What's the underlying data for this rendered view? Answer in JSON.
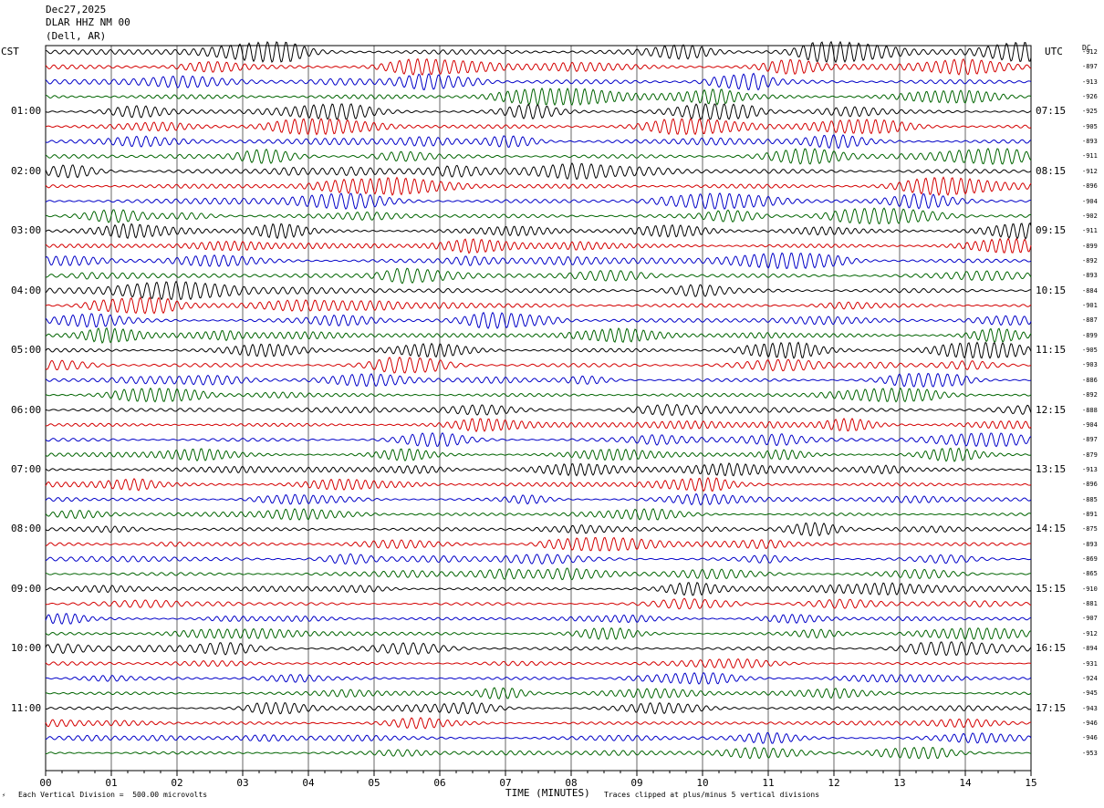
{
  "header": {
    "date": "Dec27,2025",
    "station": "DLAR HHZ NM 00",
    "location": "(Dell, AR)"
  },
  "left_zone": "CST",
  "right_zone": "UTC",
  "dc_label": "DC",
  "footer": {
    "scale": "Each Vertical Division =  500.00 microvolts",
    "xlabel": "TIME (MINUTES)",
    "clip_note": "Traces clipped at plus/minus 5 vertical divisions"
  },
  "chart_data": {
    "type": "line",
    "title": "",
    "xlabel": "TIME (MINUTES)",
    "ylabel": "",
    "xlim": [
      0,
      15
    ],
    "x_ticks": [
      "00",
      "01",
      "02",
      "03",
      "04",
      "05",
      "06",
      "07",
      "08",
      "09",
      "10",
      "11",
      "12",
      "13",
      "14",
      "15"
    ],
    "grid": true,
    "trace_colors": [
      "#000000",
      "#d40000",
      "#0000c8",
      "#006400"
    ],
    "row_count": 48,
    "left_labels": [
      {
        "row": 4,
        "text": "01:00"
      },
      {
        "row": 8,
        "text": "02:00"
      },
      {
        "row": 12,
        "text": "03:00"
      },
      {
        "row": 16,
        "text": "04:00"
      },
      {
        "row": 20,
        "text": "05:00"
      },
      {
        "row": 24,
        "text": "06:00"
      },
      {
        "row": 28,
        "text": "07:00"
      },
      {
        "row": 32,
        "text": "08:00"
      },
      {
        "row": 36,
        "text": "09:00"
      },
      {
        "row": 40,
        "text": "10:00"
      },
      {
        "row": 44,
        "text": "11:00"
      }
    ],
    "right_labels": [
      {
        "row": 4,
        "text": "07:15"
      },
      {
        "row": 8,
        "text": "08:15"
      },
      {
        "row": 12,
        "text": "09:15"
      },
      {
        "row": 16,
        "text": "10:15"
      },
      {
        "row": 20,
        "text": "11:15"
      },
      {
        "row": 24,
        "text": "12:15"
      },
      {
        "row": 28,
        "text": "13:15"
      },
      {
        "row": 32,
        "text": "14:15"
      },
      {
        "row": 36,
        "text": "15:15"
      },
      {
        "row": 40,
        "text": "16:15"
      },
      {
        "row": 44,
        "text": "17:15"
      }
    ],
    "dc_values": [
      "-912",
      "-897",
      "-913",
      "-926",
      "-925",
      "-905",
      "-893",
      "-911",
      "-912",
      "-896",
      "-904",
      "-902",
      "-911",
      "-899",
      "-892",
      "-893",
      "-884",
      "-901",
      "-887",
      "-899",
      "-905",
      "-903",
      "-886",
      "-892",
      "-888",
      "-904",
      "-897",
      "-879",
      "-913",
      "-896",
      "-885",
      "-891",
      "-875",
      "-893",
      "-869",
      "-865",
      "-910",
      "-881",
      "-907",
      "-912",
      "-894",
      "-931",
      "-924",
      "-945",
      "-943",
      "-946",
      "-946",
      "-953"
    ],
    "amplitude": [
      0.9,
      0.8,
      0.8,
      0.8,
      0.7,
      0.7,
      0.7,
      0.7,
      0.8,
      0.8,
      0.7,
      0.7,
      0.7,
      0.7,
      0.7,
      0.7,
      0.8,
      0.7,
      0.7,
      0.7,
      0.7,
      0.7,
      0.6,
      0.6,
      0.6,
      0.6,
      0.6,
      0.6,
      0.6,
      0.6,
      0.5,
      0.5,
      0.6,
      0.6,
      0.6,
      0.6,
      0.6,
      0.5,
      0.5,
      0.5,
      0.6,
      0.4,
      0.5,
      0.5,
      0.5,
      0.5,
      0.5,
      0.5
    ]
  }
}
